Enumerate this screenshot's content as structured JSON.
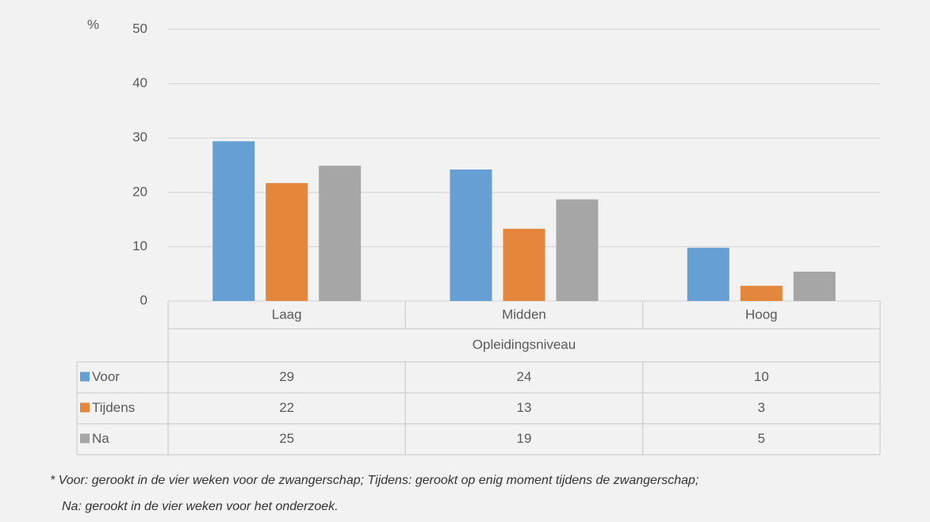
{
  "chart_data": {
    "type": "bar",
    "y_unit": "%",
    "x_label": "Opleidingsniveau",
    "categories": [
      "Laag",
      "Midden",
      "Hoog"
    ],
    "series": [
      {
        "name": "Voor",
        "color": "#659fd3",
        "values": [
          29.4,
          24.2,
          9.8
        ],
        "value_labels": [
          "29",
          "24",
          "10"
        ]
      },
      {
        "name": "Tijdens",
        "color": "#e4873d",
        "values": [
          21.7,
          13.3,
          2.8
        ],
        "value_labels": [
          "22",
          "13",
          "3"
        ]
      },
      {
        "name": "Na",
        "color": "#a6a6a6",
        "values": [
          24.9,
          18.7,
          5.4
        ],
        "value_labels": [
          "25",
          "19",
          "5"
        ]
      }
    ],
    "ylim": [
      0,
      50
    ],
    "yticks": [
      0,
      10,
      20,
      30,
      40,
      50
    ],
    "grid": true,
    "footnote": [
      "* Voor: gerookt in de vier weken voor de zwangerschap; Tijdens: gerookt op enig moment tijdens de zwangerschap;",
      "Na: gerookt in de vier weken voor het onderzoek."
    ]
  }
}
